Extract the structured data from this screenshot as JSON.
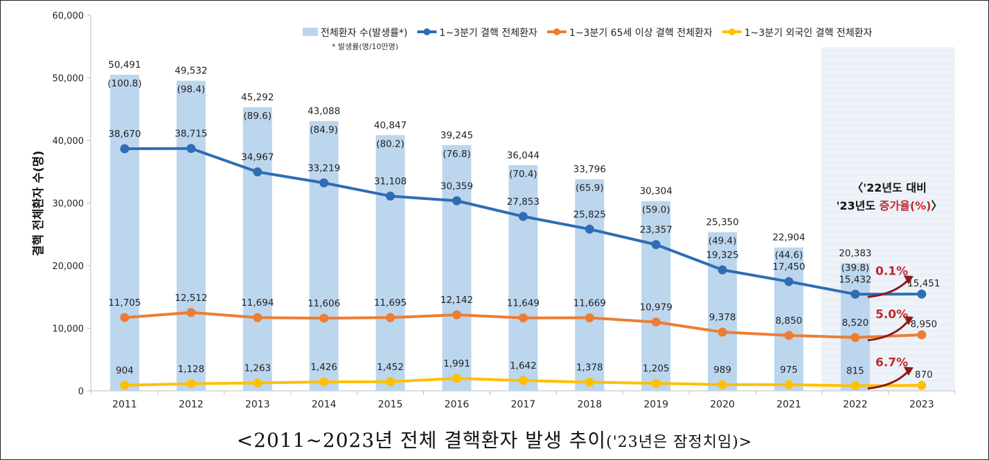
{
  "chart_data": {
    "type": "bar+line",
    "ylabel": "결핵 전체환자 수(명)",
    "ylim": [
      0,
      60000
    ],
    "yticks": [
      "0",
      "10,000",
      "20,000",
      "30,000",
      "40,000",
      "50,000",
      "60,000"
    ],
    "ytick_values": [
      0,
      10000,
      20000,
      30000,
      40000,
      50000,
      60000
    ],
    "categories": [
      "2011",
      "2012",
      "2013",
      "2014",
      "2015",
      "2016",
      "2017",
      "2018",
      "2019",
      "2020",
      "2021",
      "2022",
      "2023"
    ],
    "grid": false,
    "legend_placement": "top-right",
    "legend_note": "* 발생률(명/10만명)",
    "bars": {
      "name": "전체환자 수(발생률*)",
      "color": "#bcd6ee",
      "values": [
        50491,
        49532,
        45292,
        43088,
        40847,
        39245,
        36044,
        33796,
        30304,
        25350,
        22904,
        20383,
        null
      ],
      "labels": [
        "50,491",
        "49,532",
        "45,292",
        "43,088",
        "40,847",
        "39,245",
        "36,044",
        "33,796",
        "30,304",
        "25,350",
        "22,904",
        "20,383",
        ""
      ],
      "rates": [
        "(100.8)",
        "(98.4)",
        "(89.6)",
        "(84.9)",
        "(80.2)",
        "(76.8)",
        "(70.4)",
        "(65.9)",
        "(59.0)",
        "(49.4)",
        "(44.6)",
        "(39.8)",
        ""
      ]
    },
    "series": [
      {
        "name": "1~3분기 결핵 전체환자",
        "color": "#2e6db4",
        "values": [
          38670,
          38715,
          34967,
          33219,
          31108,
          30359,
          27853,
          25825,
          23357,
          19325,
          17450,
          15432,
          15451
        ],
        "labels": [
          "38,670",
          "38,715",
          "34,967",
          "33,219",
          "31,108",
          "30,359",
          "27,853",
          "25,825",
          "23,357",
          "19,325",
          "17,450",
          "15,432",
          "15,451"
        ]
      },
      {
        "name": "1~3분기 65세 이상 결핵 전체환자",
        "color": "#ed7d31",
        "values": [
          11705,
          12512,
          11694,
          11606,
          11695,
          12142,
          11649,
          11669,
          10979,
          9378,
          8850,
          8520,
          8950
        ],
        "labels": [
          "11,705",
          "12,512",
          "11,694",
          "11,606",
          "11,695",
          "12,142",
          "11,649",
          "11,669",
          "10,979",
          "9,378",
          "8,850",
          "8,520",
          "8,950"
        ]
      },
      {
        "name": "1~3분기 외국인 결핵 전체환자",
        "color": "#ffc000",
        "values": [
          904,
          1128,
          1263,
          1426,
          1452,
          1991,
          1642,
          1378,
          1205,
          989,
          975,
          815,
          870
        ],
        "labels": [
          "904",
          "1,128",
          "1,263",
          "1,426",
          "1,452",
          "1,991",
          "1,642",
          "1,378",
          "1,205",
          "989",
          "975",
          "815",
          "870"
        ]
      }
    ],
    "annotation": {
      "line1": "〈'22년도 대비",
      "line2a": "'23년도 ",
      "line2b": "증가율(%)",
      "line2c": "〉",
      "accent": "#c0282c",
      "rates": [
        "0.1%",
        "5.0%",
        "6.7%"
      ]
    }
  },
  "caption": {
    "main": "<2011~2023년 전체 결핵환자 발생 추이",
    "small": "('23년은 잠정치임)>"
  }
}
